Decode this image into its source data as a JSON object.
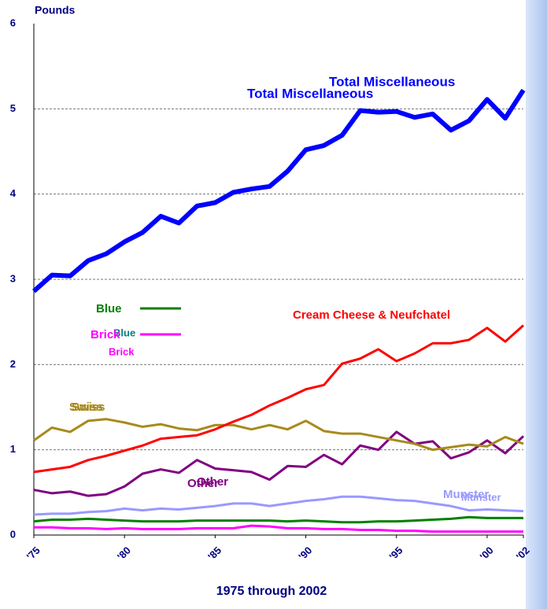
{
  "chart_data": {
    "type": "line",
    "y_axis_label": "Pounds",
    "x_axis_label": "1975 through 2002",
    "x": [
      1975,
      1976,
      1977,
      1978,
      1979,
      1980,
      1981,
      1982,
      1983,
      1984,
      1985,
      1986,
      1987,
      1988,
      1989,
      1990,
      1991,
      1992,
      1993,
      1994,
      1995,
      1996,
      1997,
      1998,
      1999,
      2000,
      2001,
      2002
    ],
    "xlim": [
      1975,
      2002
    ],
    "xticks": [
      {
        "value": 1975,
        "label": "'75"
      },
      {
        "value": 1980,
        "label": "'80"
      },
      {
        "value": 1985,
        "label": "'85"
      },
      {
        "value": 1990,
        "label": "'90"
      },
      {
        "value": 1995,
        "label": "'95"
      },
      {
        "value": 2000,
        "label": "'00"
      },
      {
        "value": 2002,
        "label": "'02"
      }
    ],
    "ylim": [
      0,
      6
    ],
    "yticks": [
      0,
      1,
      2,
      3,
      4,
      5,
      6
    ],
    "grid": true,
    "series": [
      {
        "name": "Total Miscellaneous",
        "color": "#0000ff",
        "values": [
          2.86,
          3.05,
          3.04,
          3.22,
          3.3,
          3.44,
          3.55,
          3.74,
          3.66,
          3.86,
          3.9,
          4.02,
          4.06,
          4.09,
          4.27,
          4.52,
          4.57,
          4.69,
          4.98,
          4.96,
          4.97,
          4.9,
          4.94,
          4.75,
          4.86,
          5.11,
          4.89,
          5.22
        ]
      },
      {
        "name": "Cream Cheese & Neufchatel",
        "color": "#ff0000",
        "values": [
          0.74,
          0.77,
          0.8,
          0.88,
          0.93,
          0.99,
          1.05,
          1.13,
          1.15,
          1.17,
          1.24,
          1.33,
          1.41,
          1.52,
          1.61,
          1.71,
          1.76,
          2.01,
          2.07,
          2.18,
          2.04,
          2.13,
          2.25,
          2.25,
          2.29,
          2.43,
          2.27,
          2.46
        ]
      },
      {
        "name": "Swiss",
        "color": "#a88a1c",
        "values": [
          1.11,
          1.26,
          1.21,
          1.34,
          1.36,
          1.32,
          1.27,
          1.3,
          1.25,
          1.23,
          1.29,
          1.29,
          1.24,
          1.29,
          1.24,
          1.34,
          1.22,
          1.19,
          1.19,
          1.15,
          1.11,
          1.07,
          1.0,
          1.03,
          1.06,
          1.04,
          1.15,
          1.07
        ]
      },
      {
        "name": "Other",
        "color": "#800080",
        "values": [
          0.53,
          0.49,
          0.51,
          0.46,
          0.48,
          0.57,
          0.72,
          0.77,
          0.73,
          0.88,
          0.78,
          0.76,
          0.74,
          0.65,
          0.81,
          0.8,
          0.94,
          0.83,
          1.05,
          1.0,
          1.21,
          1.07,
          1.1,
          0.9,
          0.97,
          1.11,
          0.96,
          1.16
        ]
      },
      {
        "name": "Munster",
        "color": "#9999ff",
        "values": [
          0.24,
          0.25,
          0.25,
          0.27,
          0.28,
          0.31,
          0.29,
          0.31,
          0.3,
          0.32,
          0.34,
          0.37,
          0.37,
          0.34,
          0.37,
          0.4,
          0.42,
          0.45,
          0.45,
          0.43,
          0.41,
          0.4,
          0.37,
          0.34,
          0.29,
          0.3,
          0.29,
          0.28
        ]
      },
      {
        "name": "Blue",
        "color": "#008000",
        "values": [
          0.16,
          0.18,
          0.18,
          0.19,
          0.18,
          0.17,
          0.16,
          0.16,
          0.16,
          0.17,
          0.17,
          0.17,
          0.17,
          0.17,
          0.16,
          0.17,
          0.16,
          0.15,
          0.15,
          0.16,
          0.16,
          0.17,
          0.18,
          0.19,
          0.21,
          0.2,
          0.2,
          0.2
        ]
      },
      {
        "name": "Brick",
        "color": "#ff00ff",
        "values": [
          0.09,
          0.09,
          0.08,
          0.08,
          0.07,
          0.08,
          0.07,
          0.07,
          0.07,
          0.08,
          0.08,
          0.08,
          0.11,
          0.1,
          0.08,
          0.08,
          0.07,
          0.07,
          0.06,
          0.06,
          0.05,
          0.05,
          0.04,
          0.04,
          0.04,
          0.04,
          0.04,
          0.04
        ]
      }
    ]
  }
}
